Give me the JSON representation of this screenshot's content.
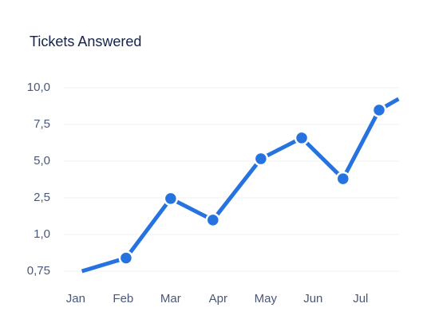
{
  "chart_data": {
    "type": "line",
    "title": "Tickets Answered",
    "x": [
      0.13,
      1.06,
      2.0,
      2.89,
      3.9,
      4.76,
      5.63,
      6.39,
      6.8
    ],
    "series": [
      {
        "color": "#2673e0",
        "values": [
          0.75,
          0.84,
          2.47,
          1.59,
          5.16,
          6.58,
          3.8,
          8.48,
          9.24
        ],
        "markers": [
          false,
          true,
          true,
          true,
          true,
          true,
          true,
          true,
          false
        ]
      }
    ],
    "xlim": [
      -0.25,
      6.81
    ],
    "xticks": [
      {
        "value": 0,
        "label": "Jan"
      },
      {
        "value": 1,
        "label": "Feb"
      },
      {
        "value": 2,
        "label": "Mar"
      },
      {
        "value": 3,
        "label": "Apr"
      },
      {
        "value": 4,
        "label": "May"
      },
      {
        "value": 5,
        "label": "Jun"
      },
      {
        "value": 6,
        "label": "Jul"
      }
    ],
    "ylim": [
      0.75,
      10.0
    ],
    "yticks": [
      {
        "value": 0.75,
        "label": "0,75"
      },
      {
        "value": 1.0,
        "label": "1,0"
      },
      {
        "value": 2.5,
        "label": "2,5"
      },
      {
        "value": 5.0,
        "label": "5,0"
      },
      {
        "value": 7.5,
        "label": "7,5"
      },
      {
        "value": 10.0,
        "label": "10,0"
      }
    ],
    "grid": true
  }
}
